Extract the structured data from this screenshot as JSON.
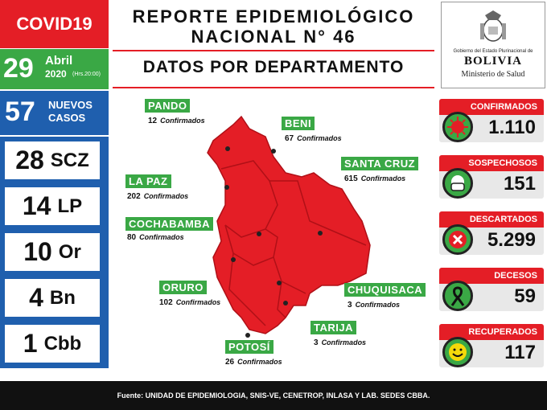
{
  "header": {
    "tag": "COVID19",
    "title_line1": "REPORTE EPIDEMIOLÓGICO",
    "title_line2": "NACIONAL N° 46",
    "subtitle": "DATOS POR DEPARTAMENTO"
  },
  "date": {
    "day": "29",
    "month": "Abril",
    "year": "2020",
    "hours": "(Hrs.20:00)"
  },
  "new_cases": {
    "count": "57",
    "label_line1": "NUEVOS",
    "label_line2": "CASOS"
  },
  "dept_summary": [
    {
      "num": "28",
      "code": "SCZ"
    },
    {
      "num": "14",
      "code": "LP"
    },
    {
      "num": "10",
      "code": "Or"
    },
    {
      "num": "4",
      "code": "Bn"
    },
    {
      "num": "1",
      "code": "Cbb"
    }
  ],
  "logo": {
    "gov": "Gobierno del Estado Plurinacional de",
    "name": "BOLIVIA",
    "ministry": "Ministerio de Salud"
  },
  "map": {
    "unit": "Confirmados",
    "departments": [
      {
        "name": "PANDO",
        "cases": "12"
      },
      {
        "name": "BENI",
        "cases": "67"
      },
      {
        "name": "SANTA CRUZ",
        "cases": "615"
      },
      {
        "name": "LA PAZ",
        "cases": "202"
      },
      {
        "name": "COCHABAMBA",
        "cases": "80"
      },
      {
        "name": "ORURO",
        "cases": "102"
      },
      {
        "name": "CHUQUISACA",
        "cases": "3"
      },
      {
        "name": "TARIJA",
        "cases": "3"
      },
      {
        "name": "POTOSÍ",
        "cases": "26"
      }
    ]
  },
  "stats": [
    {
      "label": "CONFIRMADOS",
      "value": "1.110",
      "icon": "virus-icon",
      "color": "#e41e26"
    },
    {
      "label": "SOSPECHOSOS",
      "value": "151",
      "icon": "mask-icon",
      "color": "#3aa845"
    },
    {
      "label": "DESCARTADOS",
      "value": "5.299",
      "icon": "x-icon",
      "color": "#e41e26"
    },
    {
      "label": "DECESOS",
      "value": "59",
      "icon": "ribbon-icon",
      "color": "#3aa845"
    },
    {
      "label": "RECUPERADOS",
      "value": "117",
      "icon": "smile-icon",
      "color": "#3aa845"
    }
  ],
  "footer": "Fuente: UNIDAD DE EPIDEMIOLOGIA, SNIS-VE, CENETROP, INLASA Y LAB. SEDES CBBA.",
  "colors": {
    "red": "#e41e26",
    "green": "#3aa845",
    "blue": "#1f5fae"
  }
}
